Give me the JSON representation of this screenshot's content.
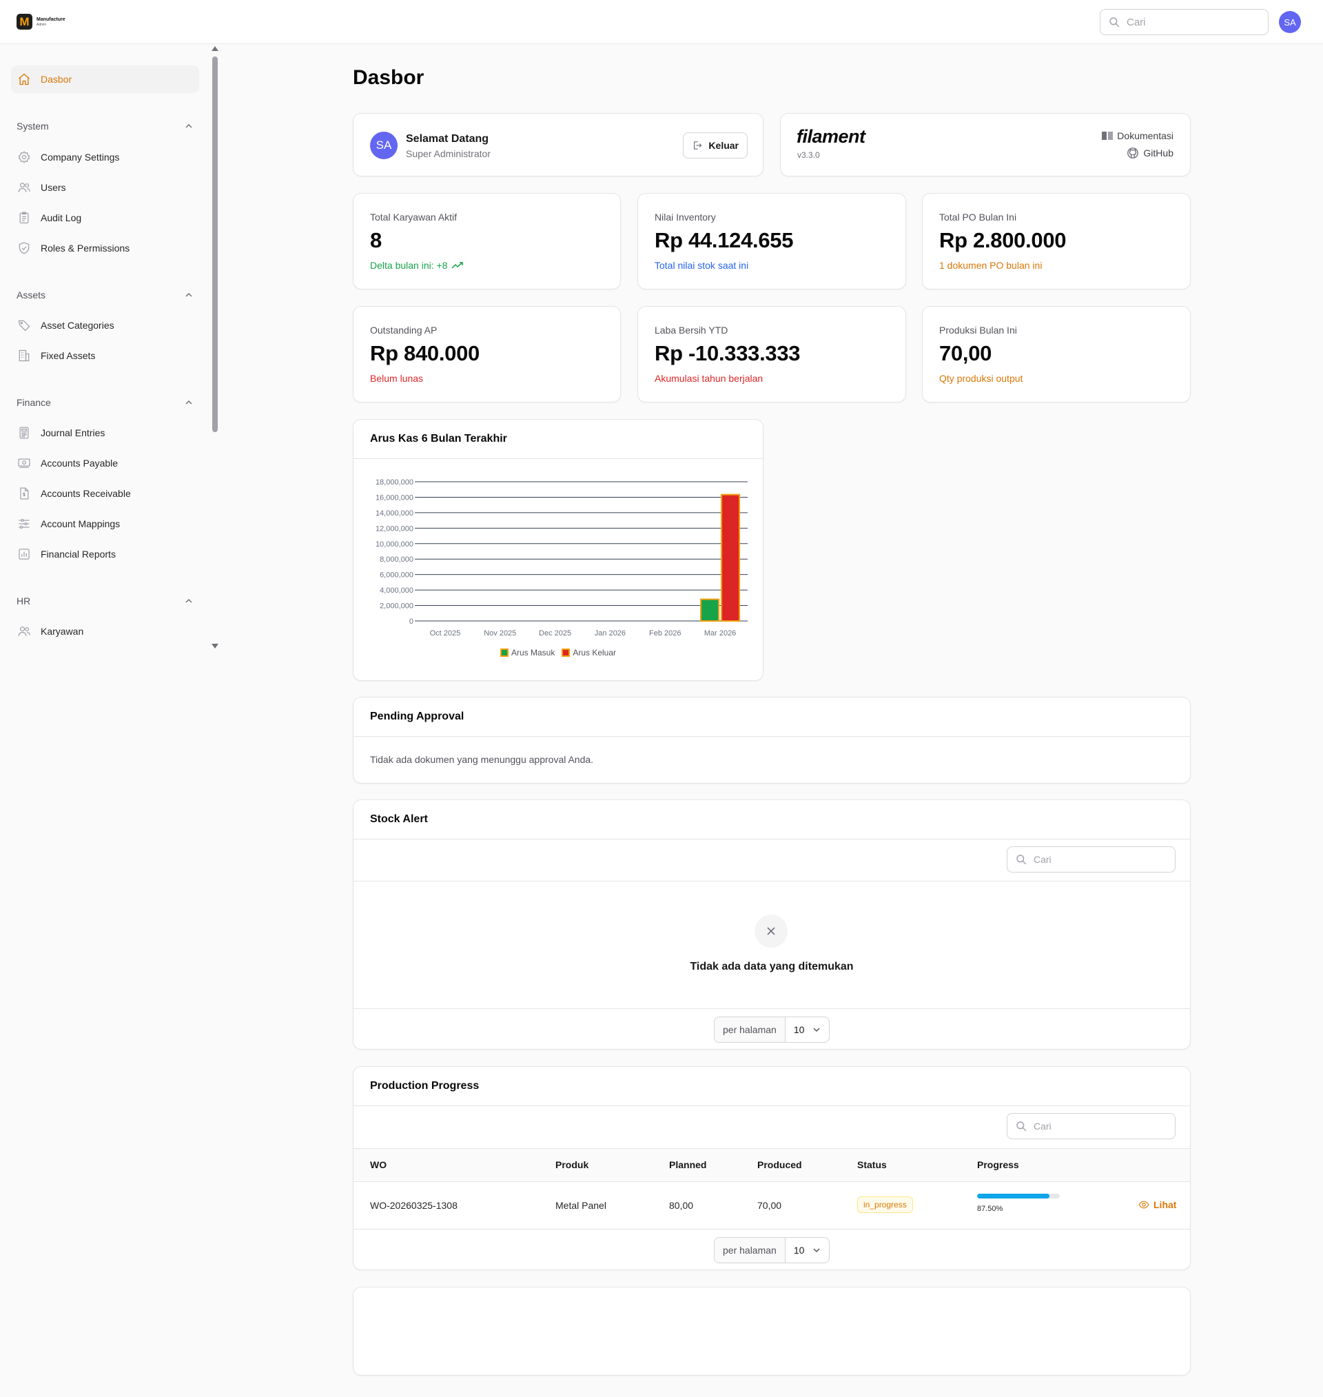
{
  "brand": {
    "mark": "M",
    "name": "Manufacture",
    "subtitle": "Admin"
  },
  "topbar": {
    "search_placeholder": "Cari",
    "avatar_initials": "SA"
  },
  "sidebar": {
    "home": "Dasbor",
    "groups": [
      {
        "label": "System",
        "items": [
          "Company Settings",
          "Users",
          "Audit Log",
          "Roles & Permissions"
        ]
      },
      {
        "label": "Assets",
        "items": [
          "Asset Categories",
          "Fixed Assets"
        ]
      },
      {
        "label": "Finance",
        "items": [
          "Journal Entries",
          "Accounts Payable",
          "Accounts Receivable",
          "Account Mappings",
          "Financial Reports"
        ]
      },
      {
        "label": "HR",
        "items": [
          "Karyawan"
        ]
      }
    ]
  },
  "page": {
    "title": "Dasbor"
  },
  "welcome": {
    "initials": "SA",
    "title": "Selamat Datang",
    "role": "Super Administrator",
    "logout": "Keluar"
  },
  "filament": {
    "logo": "filament",
    "version": "v3.3.0",
    "docs": "Dokumentasi",
    "github": "GitHub"
  },
  "stats": [
    {
      "label": "Total Karyawan Aktif",
      "value": "8",
      "desc": "Delta bulan ini: +8",
      "color": "#16a34a",
      "icon": "trending-up-icon"
    },
    {
      "label": "Nilai Inventory",
      "value": "Rp 44.124.655",
      "desc": "Total nilai stok saat ini",
      "color": "#2563eb"
    },
    {
      "label": "Total PO Bulan Ini",
      "value": "Rp 2.800.000",
      "desc": "1 dokumen PO bulan ini",
      "color": "#d97706"
    },
    {
      "label": "Outstanding AP",
      "value": "Rp 840.000",
      "desc": "Belum lunas",
      "color": "#dc2626"
    },
    {
      "label": "Laba Bersih YTD",
      "value": "Rp -10.333.333",
      "desc": "Akumulasi tahun berjalan",
      "color": "#dc2626"
    },
    {
      "label": "Produksi Bulan Ini",
      "value": "70,00",
      "desc": "Qty produksi output",
      "color": "#d97706"
    }
  ],
  "cashflow": {
    "title": "Arus Kas 6 Bulan Terakhir",
    "chart_data": {
      "type": "bar",
      "categories": [
        "Oct 2025",
        "Nov 2025",
        "Dec 2025",
        "Jan 2026",
        "Feb 2026",
        "Mar 2026"
      ],
      "series": [
        {
          "name": "Arus Masuk",
          "values": [
            0,
            0,
            0,
            0,
            0,
            2800000
          ],
          "fill": "#16a34a",
          "stroke": "#f59e0b"
        },
        {
          "name": "Arus Keluar",
          "values": [
            0,
            0,
            0,
            0,
            0,
            16333333
          ],
          "fill": "#dc2626",
          "stroke": "#f59e0b"
        }
      ],
      "yticks": [
        "0",
        "2,000,000",
        "4,000,000",
        "6,000,000",
        "8,000,000",
        "10,000,000",
        "12,000,000",
        "14,000,000",
        "16,000,000",
        "18,000,000"
      ],
      "ylim": [
        0,
        18000000
      ],
      "grid": true,
      "legend": "bottom"
    }
  },
  "pending": {
    "title": "Pending Approval",
    "empty": "Tidak ada dokumen yang menunggu approval Anda."
  },
  "stock": {
    "title": "Stock Alert",
    "search_placeholder": "Cari",
    "empty": "Tidak ada data yang ditemukan",
    "per_page_label": "per halaman",
    "per_page_value": "10"
  },
  "production": {
    "title": "Production Progress",
    "search_placeholder": "Cari",
    "columns": [
      "WO",
      "Produk",
      "Planned",
      "Produced",
      "Status",
      "Progress"
    ],
    "rows": [
      {
        "wo": "WO-20260325-1308",
        "produk": "Metal Panel",
        "planned": "80,00",
        "produced": "70,00",
        "status": "in_progress",
        "progress_label": "87.50%",
        "progress": 0.875,
        "action": "Lihat"
      }
    ],
    "per_page_label": "per halaman",
    "per_page_value": "10"
  }
}
